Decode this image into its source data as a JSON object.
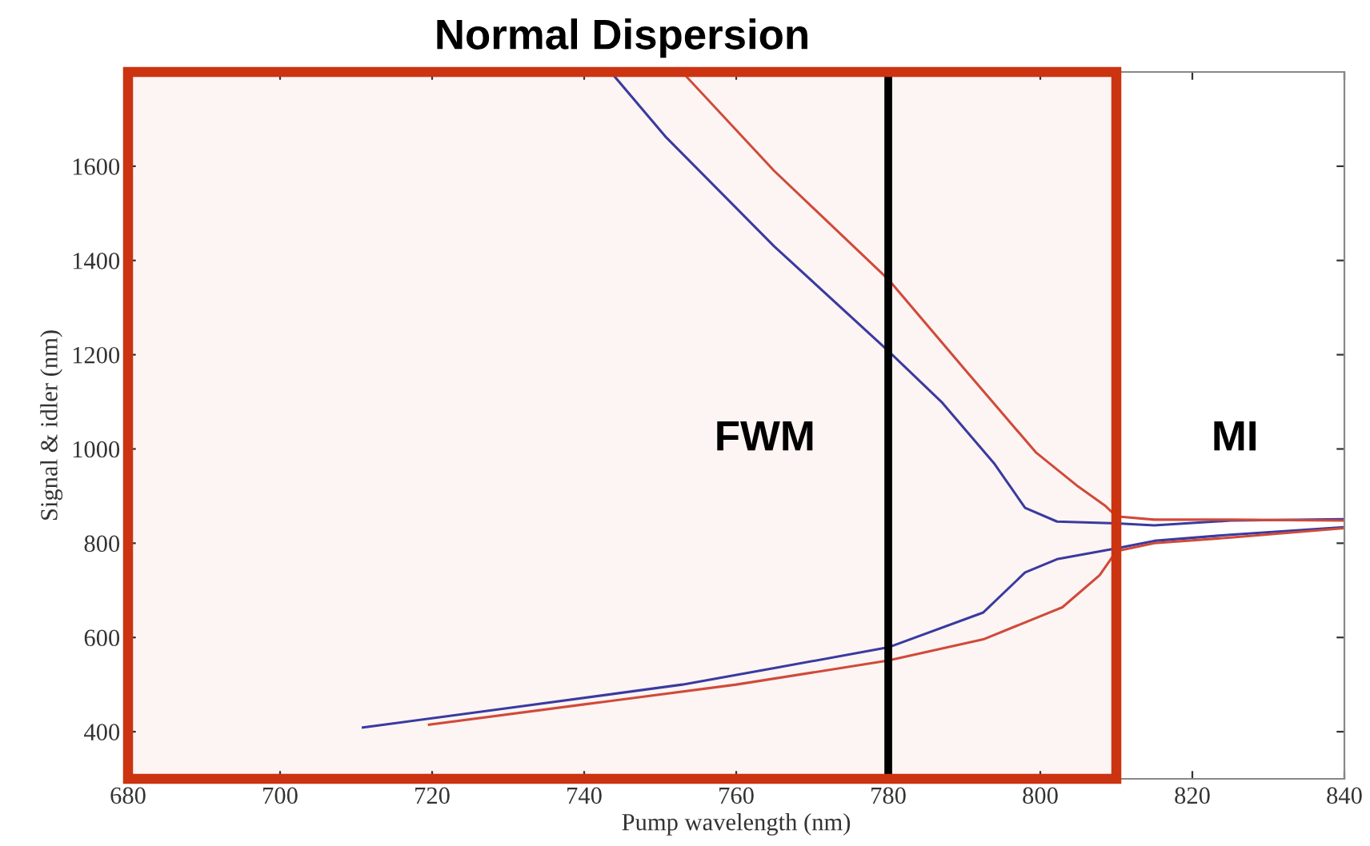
{
  "chart_data": {
    "type": "line",
    "xlabel": "Pump wavelength (nm)",
    "ylabel": "Signal & idler (nm)",
    "xlim": [
      680,
      840
    ],
    "xticks": [
      680,
      700,
      720,
      740,
      760,
      780,
      800,
      820,
      840
    ],
    "ylim": [
      300,
      1800
    ],
    "yticks": [
      400,
      600,
      800,
      1000,
      1200,
      1400,
      1600
    ],
    "grid": false,
    "marker": "none",
    "line_style": "solid",
    "series": [
      {
        "color": "#3a3aa0",
        "x": [
          743.5,
          750.8,
          765,
          780,
          787,
          793.9,
          798,
          802.2,
          810,
          815,
          825,
          840
        ],
        "values": [
          1800,
          1661,
          1430,
          1208,
          1100,
          970,
          875,
          846,
          842,
          838,
          848,
          851
        ]
      },
      {
        "color": "#d04a3a",
        "x": [
          753,
          765,
          780,
          790,
          799.4,
          805,
          808.5,
          810,
          815,
          825,
          840
        ],
        "values": [
          1798,
          1590,
          1360,
          1170,
          993,
          920,
          880,
          857,
          850,
          850,
          848
        ]
      },
      {
        "color": "#3a3aa0",
        "x": [
          710.9,
          730,
          752.9,
          765,
          780,
          792.5,
          798,
          802.2,
          810,
          815,
          825,
          840
        ],
        "values": [
          409,
          450,
          500,
          535,
          579,
          653,
          738,
          766,
          789,
          805,
          818,
          834
        ]
      },
      {
        "color": "#d04a3a",
        "x": [
          719.6,
          740,
          760,
          780,
          792.5,
          802.9,
          807.8,
          810,
          815,
          825,
          840
        ],
        "values": [
          415,
          458,
          500,
          551,
          596,
          664,
          732,
          783,
          800,
          812,
          832
        ]
      }
    ],
    "ref_lines": [
      {
        "axis": "x",
        "value": 780,
        "color": "#000000"
      }
    ],
    "bands": [
      {
        "axis": "x",
        "from": 680,
        "to": 810,
        "label": "Normal Dispersion",
        "color": "#cc3311"
      }
    ],
    "annotations": [
      "FWM",
      "MI"
    ]
  }
}
